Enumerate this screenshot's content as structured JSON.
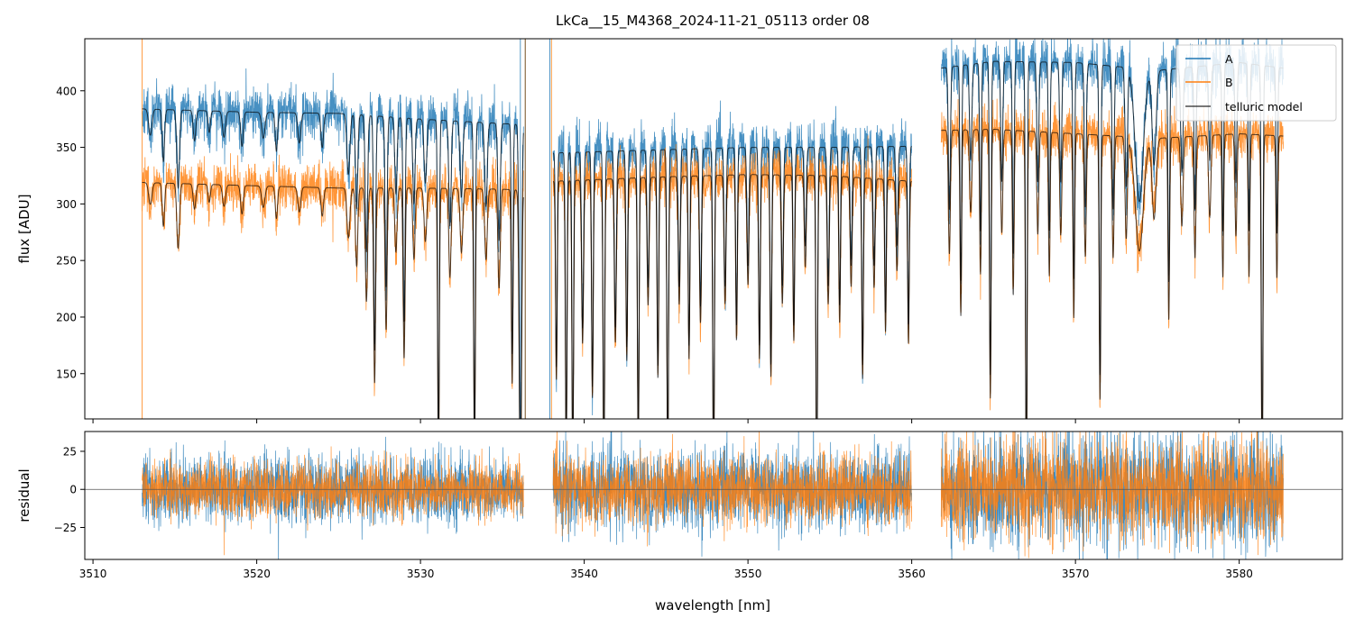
{
  "chart_data": [
    {
      "panel": "top",
      "type": "line",
      "title": "LkCa__15_M4368_2024-11-21_05113  order 08",
      "xlabel": "",
      "ylabel": "flux [ADU]",
      "xlim": [
        3509.5,
        3586.3
      ],
      "ylim": [
        110,
        446
      ],
      "xticks": [
        3510,
        3520,
        3530,
        3540,
        3550,
        3560,
        3570,
        3580
      ],
      "yticks": [
        150,
        200,
        250,
        300,
        350,
        400
      ],
      "ytick_labels": [
        "150",
        "200",
        "250",
        "300",
        "350",
        "400"
      ],
      "legend": {
        "placement": "top-right",
        "entries": [
          "A",
          "B",
          "telluric model"
        ]
      },
      "series": [
        {
          "name": "A",
          "color": "#1f77b4",
          "noise": 11,
          "segments": [
            {
              "x0": 3513.0,
              "x1": 3536.3,
              "continuum": [
                [
                  3513.0,
                  384
                ],
                [
                  3520,
                  381
                ],
                [
                  3525,
                  380
                ],
                [
                  3530,
                  375
                ],
                [
                  3535,
                  371
                ],
                [
                  3536.3,
                  370
                ]
              ]
            },
            {
              "x0": 3538.1,
              "x1": 3560.0,
              "continuum": [
                [
                  3538.1,
                  345
                ],
                [
                  3545,
                  348
                ],
                [
                  3550,
                  350
                ],
                [
                  3555,
                  350
                ],
                [
                  3560,
                  351
                ]
              ]
            },
            {
              "x0": 3561.8,
              "x1": 3582.7,
              "continuum": [
                [
                  3561.8,
                  420
                ],
                [
                  3565,
                  426
                ],
                [
                  3570,
                  425
                ],
                [
                  3575,
                  418
                ],
                [
                  3580,
                  425
                ],
                [
                  3582.7,
                  420
                ]
              ]
            }
          ]
        },
        {
          "name": "B",
          "color": "#ff7f0e",
          "noise": 10,
          "segments": [
            {
              "x0": 3513.0,
              "x1": 3536.3,
              "continuum": [
                [
                  3513.0,
                  319
                ],
                [
                  3520,
                  316
                ],
                [
                  3525,
                  314
                ],
                [
                  3530,
                  314
                ],
                [
                  3535,
                  313
                ],
                [
                  3536.3,
                  312
                ]
              ]
            },
            {
              "x0": 3538.1,
              "x1": 3560.0,
              "continuum": [
                [
                  3538.1,
                  320
                ],
                [
                  3545,
                  324
                ],
                [
                  3550,
                  326
                ],
                [
                  3555,
                  325
                ],
                [
                  3560,
                  320
                ]
              ]
            },
            {
              "x0": 3561.8,
              "x1": 3582.7,
              "continuum": [
                [
                  3561.8,
                  365
                ],
                [
                  3565,
                  366
                ],
                [
                  3570,
                  362
                ],
                [
                  3575,
                  358
                ],
                [
                  3580,
                  362
                ],
                [
                  3582.7,
                  360
                ]
              ]
            }
          ]
        },
        {
          "name": "telluric model",
          "color": "#000000"
        }
      ],
      "absorption_lines": [
        [
          3513.5,
          0.06,
          0.1
        ],
        [
          3514.3,
          0.12,
          0.07
        ],
        [
          3515.2,
          0.18,
          0.08
        ],
        [
          3516.2,
          0.07,
          0.08
        ],
        [
          3517.1,
          0.05,
          0.07
        ],
        [
          3518.0,
          0.06,
          0.09
        ],
        [
          3519.1,
          0.08,
          0.08
        ],
        [
          3520.4,
          0.06,
          0.1
        ],
        [
          3521.2,
          0.09,
          0.07
        ],
        [
          3522.6,
          0.07,
          0.09
        ],
        [
          3524.0,
          0.08,
          0.08
        ],
        [
          3525.6,
          0.14,
          0.09
        ],
        [
          3526.1,
          0.22,
          0.07
        ],
        [
          3526.7,
          0.32,
          0.07
        ],
        [
          3527.2,
          0.55,
          0.06
        ],
        [
          3527.9,
          0.4,
          0.06
        ],
        [
          3528.5,
          0.18,
          0.07
        ],
        [
          3529.0,
          0.48,
          0.06
        ],
        [
          3529.6,
          0.2,
          0.07
        ],
        [
          3530.3,
          0.15,
          0.08
        ],
        [
          3531.1,
          0.8,
          0.05
        ],
        [
          3531.8,
          0.25,
          0.07
        ],
        [
          3532.5,
          0.18,
          0.08
        ],
        [
          3533.3,
          0.78,
          0.05
        ],
        [
          3534.0,
          0.2,
          0.08
        ],
        [
          3534.8,
          0.28,
          0.07
        ],
        [
          3535.6,
          0.55,
          0.05
        ],
        [
          3536.1,
          0.85,
          0.07
        ],
        [
          3538.3,
          0.55,
          0.05
        ],
        [
          3538.9,
          0.75,
          0.05
        ],
        [
          3539.3,
          0.8,
          0.05
        ],
        [
          3539.9,
          0.45,
          0.06
        ],
        [
          3540.5,
          0.6,
          0.05
        ],
        [
          3541.2,
          0.82,
          0.05
        ],
        [
          3541.9,
          0.45,
          0.06
        ],
        [
          3542.6,
          0.5,
          0.05
        ],
        [
          3543.3,
          0.75,
          0.05
        ],
        [
          3543.9,
          0.35,
          0.06
        ],
        [
          3544.5,
          0.55,
          0.05
        ],
        [
          3545.1,
          0.8,
          0.05
        ],
        [
          3545.8,
          0.35,
          0.06
        ],
        [
          3546.4,
          0.5,
          0.05
        ],
        [
          3547.1,
          0.4,
          0.06
        ],
        [
          3547.9,
          0.85,
          0.05
        ],
        [
          3548.6,
          0.35,
          0.06
        ],
        [
          3549.3,
          0.45,
          0.05
        ],
        [
          3550.0,
          0.3,
          0.06
        ],
        [
          3550.7,
          0.5,
          0.05
        ],
        [
          3551.4,
          0.55,
          0.05
        ],
        [
          3552.1,
          0.35,
          0.06
        ],
        [
          3552.8,
          0.45,
          0.05
        ],
        [
          3553.5,
          0.25,
          0.06
        ],
        [
          3554.2,
          0.88,
          0.05
        ],
        [
          3554.9,
          0.35,
          0.06
        ],
        [
          3555.6,
          0.4,
          0.05
        ],
        [
          3556.3,
          0.3,
          0.06
        ],
        [
          3557.0,
          0.55,
          0.05
        ],
        [
          3557.7,
          0.3,
          0.06
        ],
        [
          3558.4,
          0.42,
          0.05
        ],
        [
          3559.1,
          0.25,
          0.06
        ],
        [
          3559.8,
          0.45,
          0.05
        ],
        [
          3562.3,
          0.3,
          0.06
        ],
        [
          3563.0,
          0.45,
          0.05
        ],
        [
          3563.6,
          0.2,
          0.07
        ],
        [
          3564.2,
          0.35,
          0.05
        ],
        [
          3564.8,
          0.65,
          0.05
        ],
        [
          3565.5,
          0.25,
          0.06
        ],
        [
          3566.2,
          0.4,
          0.05
        ],
        [
          3567.0,
          0.85,
          0.05
        ],
        [
          3567.7,
          0.25,
          0.06
        ],
        [
          3568.4,
          0.35,
          0.05
        ],
        [
          3569.1,
          0.25,
          0.06
        ],
        [
          3569.9,
          0.45,
          0.05
        ],
        [
          3570.6,
          0.3,
          0.06
        ],
        [
          3571.5,
          0.65,
          0.05
        ],
        [
          3572.3,
          0.3,
          0.06
        ],
        [
          3573.1,
          0.25,
          0.07
        ],
        [
          3573.9,
          0.28,
          0.25
        ],
        [
          3574.8,
          0.2,
          0.12
        ],
        [
          3575.7,
          0.45,
          0.05
        ],
        [
          3576.5,
          0.22,
          0.07
        ],
        [
          3577.3,
          0.3,
          0.06
        ],
        [
          3578.2,
          0.2,
          0.07
        ],
        [
          3579.0,
          0.35,
          0.05
        ],
        [
          3579.8,
          0.25,
          0.06
        ],
        [
          3580.6,
          0.35,
          0.05
        ],
        [
          3581.4,
          0.88,
          0.05
        ],
        [
          3582.3,
          0.35,
          0.05
        ]
      ]
    },
    {
      "panel": "bottom",
      "type": "line",
      "xlabel": "wavelength [nm]",
      "ylabel": "residual",
      "xlim": [
        3509.5,
        3586.3
      ],
      "ylim": [
        -46,
        38
      ],
      "xticks": [
        3510,
        3520,
        3530,
        3540,
        3550,
        3560,
        3570,
        3580
      ],
      "xtick_labels": [
        "3510",
        "3520",
        "3530",
        "3540",
        "3550",
        "3560",
        "3570",
        "3580"
      ],
      "yticks": [
        -25,
        0,
        25
      ],
      "ytick_labels": [
        "−25",
        "0",
        "25"
      ],
      "zero_line": true,
      "series": [
        {
          "name": "A",
          "color": "#1f77b4",
          "noise": [
            [
              3513,
              11
            ],
            [
              3536,
              11
            ],
            [
              3538,
              13
            ],
            [
              3560,
              13
            ],
            [
              3562,
              17
            ],
            [
              3582.7,
              19
            ]
          ]
        },
        {
          "name": "B",
          "color": "#ff7f0e",
          "noise": [
            [
              3513,
              9
            ],
            [
              3536,
              9
            ],
            [
              3538,
              11
            ],
            [
              3560,
              11
            ],
            [
              3562,
              15
            ],
            [
              3582.7,
              17
            ]
          ]
        }
      ]
    }
  ]
}
